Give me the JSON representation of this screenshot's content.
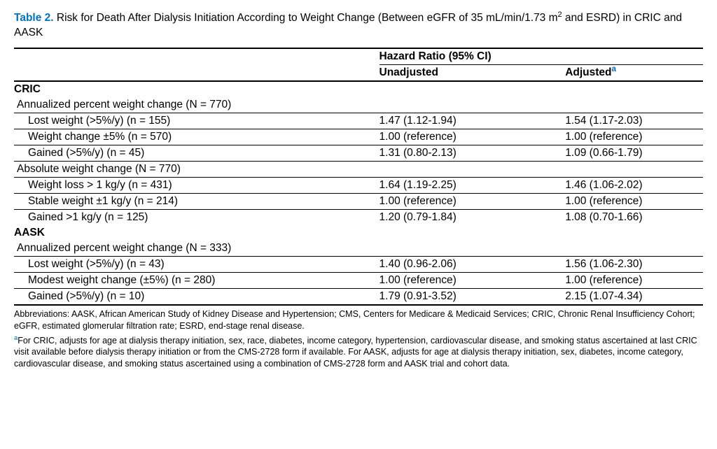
{
  "caption": {
    "label": "Table 2.",
    "text_a": " Risk for Death After Dialysis Initiation According to Weight Change (Between eGFR of 35 mL/min/1.73 m",
    "sup": "2",
    "text_b": " and ESRD) in CRIC and AASK"
  },
  "header": {
    "hr": "Hazard Ratio (95% CI)",
    "unadj": "Unadjusted",
    "adj": "Adjusted",
    "adj_sup": "a"
  },
  "sections": [
    {
      "title": "CRIC",
      "blocks": [
        {
          "label": "Annualized percent weight change (N = 770)",
          "rows": [
            {
              "cat": "Lost weight (>5%/y) (n = 155)",
              "unadj": "1.47 (1.12-1.94)",
              "adj": "1.54 (1.17-2.03)"
            },
            {
              "cat": "Weight change ±5% (n = 570)",
              "unadj": "1.00 (reference)",
              "adj": "1.00 (reference)"
            },
            {
              "cat": "Gained (>5%/y) (n = 45)",
              "unadj": "1.31 (0.80-2.13)",
              "adj": "1.09 (0.66-1.79)"
            }
          ]
        },
        {
          "label": "Absolute weight change (N = 770)",
          "rows": [
            {
              "cat": "Weight loss > 1 kg/y (n = 431)",
              "unadj": "1.64 (1.19-2.25)",
              "adj": "1.46 (1.06-2.02)"
            },
            {
              "cat": "Stable weight ±1 kg/y (n = 214)",
              "unadj": "1.00 (reference)",
              "adj": "1.00 (reference)"
            },
            {
              "cat": "Gained >1 kg/y (n = 125)",
              "unadj": "1.20 (0.79-1.84)",
              "adj": "1.08 (0.70-1.66)"
            }
          ]
        }
      ]
    },
    {
      "title": "AASK",
      "blocks": [
        {
          "label": "Annualized percent weight change (N = 333)",
          "rows": [
            {
              "cat": "Lost weight (>5%/y) (n = 43)",
              "unadj": "1.40 (0.96-2.06)",
              "adj": "1.56 (1.06-2.30)"
            },
            {
              "cat": "Modest weight change (±5%) (n = 280)",
              "unadj": "1.00 (reference)",
              "adj": "1.00 (reference)"
            },
            {
              "cat": "Gained (>5%/y) (n = 10)",
              "unadj": "1.79 (0.91-3.52)",
              "adj": "2.15 (1.07-4.34)"
            }
          ]
        }
      ]
    }
  ],
  "footnotes": {
    "abbrev": "Abbreviations: AASK, African American Study of Kidney Disease and Hypertension; CMS, Centers for Medicare & Medicaid Services; CRIC, Chronic Renal Insufficiency Cohort; eGFR, estimated glomerular filtration rate; ESRD, end-stage renal disease.",
    "note_sup": "a",
    "note": "For CRIC, adjusts for age at dialysis therapy initiation, sex, race, diabetes, income category, hypertension, cardiovascular disease, and smoking status ascertained at last CRIC visit available before dialysis therapy initiation or from the CMS-2728 form if available. For AASK, adjusts for age at dialysis therapy initiation, sex, diabetes, income category, cardiovascular disease, and smoking status ascertained using a combination of CMS-2728 form and AASK trial and cohort data."
  }
}
